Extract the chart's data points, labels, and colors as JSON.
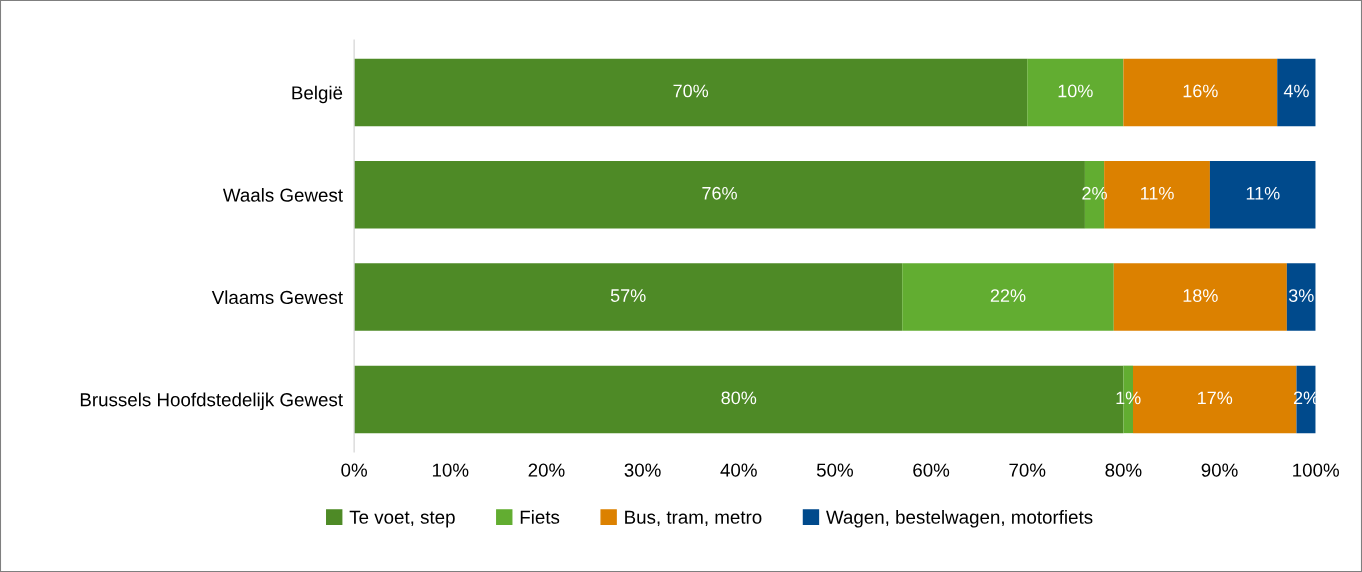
{
  "chart_data": {
    "type": "bar",
    "orientation": "horizontal",
    "stacked": true,
    "data_labels": true,
    "legend": "bottom",
    "grid": false,
    "categories": [
      "België",
      "Waals Gewest",
      "Vlaams Gewest",
      "Brussels Hoofdstedelijk Gewest"
    ],
    "series": [
      {
        "name": "Te voet, step",
        "color": "#4e8a26",
        "values": [
          70,
          76,
          57,
          80
        ],
        "value_labels": [
          "70%",
          "76%",
          "57%",
          "80%"
        ]
      },
      {
        "name": "Fiets",
        "color": "#62ad31",
        "values": [
          10,
          2,
          22,
          1
        ],
        "value_labels": [
          "10%",
          "2%",
          "22%",
          "1%"
        ]
      },
      {
        "name": "Bus, tram, metro",
        "color": "#dc8100",
        "values": [
          16,
          11,
          18,
          17
        ],
        "value_labels": [
          "16%",
          "11%",
          "18%",
          "17%"
        ]
      },
      {
        "name": "Wagen, bestelwagen, motorfiets",
        "color": "#004a8c",
        "values": [
          4,
          11,
          3,
          2
        ],
        "value_labels": [
          "4%",
          "11%",
          "3%",
          "2%"
        ]
      }
    ],
    "xlim": [
      0,
      100
    ],
    "xticks": [
      {
        "value": 0,
        "label": "0%"
      },
      {
        "value": 10,
        "label": "10%"
      },
      {
        "value": 20,
        "label": "20%"
      },
      {
        "value": 30,
        "label": "30%"
      },
      {
        "value": 40,
        "label": "40%"
      },
      {
        "value": 50,
        "label": "50%"
      },
      {
        "value": 60,
        "label": "60%"
      },
      {
        "value": 70,
        "label": "70%"
      },
      {
        "value": 80,
        "label": "80%"
      },
      {
        "value": 90,
        "label": "90%"
      },
      {
        "value": 100,
        "label": "100%"
      }
    ]
  }
}
